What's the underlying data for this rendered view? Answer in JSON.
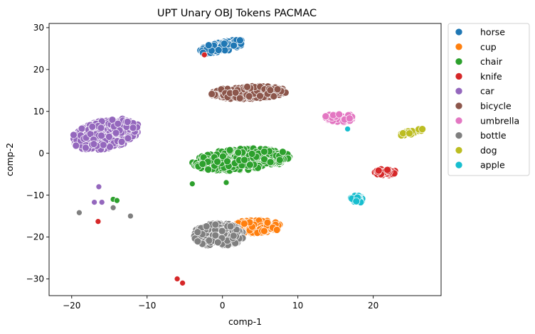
{
  "chart_data": {
    "type": "scatter",
    "title": "UPT Unary OBJ Tokens PACMAC",
    "xlabel": "comp-1",
    "ylabel": "comp-2",
    "xlim": [
      -23,
      29
    ],
    "ylim": [
      -34,
      31
    ],
    "xticks": [
      -20,
      -10,
      0,
      10,
      20
    ],
    "yticks": [
      -30,
      -20,
      -10,
      0,
      10,
      20,
      30
    ],
    "grid": false,
    "legend_position": "outside right",
    "series": [
      {
        "name": "horse",
        "color": "#1f77b4",
        "clusters": [
          {
            "cx": 0,
            "cy": 25.5,
            "rx": 3,
            "ry": 1.2,
            "tilt": 0.35,
            "n": 90
          }
        ]
      },
      {
        "name": "cup",
        "color": "#ff7f0e",
        "clusters": [
          {
            "cx": 4.5,
            "cy": -17.5,
            "rx": 3.2,
            "ry": 1.6,
            "tilt": 0,
            "n": 130
          }
        ]
      },
      {
        "name": "chair",
        "color": "#2ca02c",
        "clusters": [
          {
            "cx": 2.5,
            "cy": -1.5,
            "rx": 6.5,
            "ry": 2.6,
            "tilt": 0.12,
            "n": 380
          }
        ],
        "points": [
          [
            -14.5,
            -11
          ],
          [
            -14,
            -11.3
          ],
          [
            -4,
            -7.3
          ],
          [
            0.5,
            -7
          ]
        ]
      },
      {
        "name": "knife",
        "color": "#d62728",
        "clusters": [
          {
            "cx": 21.5,
            "cy": -4.5,
            "rx": 1.5,
            "ry": 0.8,
            "tilt": 0,
            "n": 40
          }
        ],
        "points": [
          [
            -16.5,
            -16.3
          ],
          [
            -6,
            -30
          ],
          [
            -5.3,
            -31
          ],
          [
            -2.4,
            23.5
          ]
        ]
      },
      {
        "name": "car",
        "color": "#9467bd",
        "clusters": [
          {
            "cx": -15.5,
            "cy": 4.5,
            "rx": 4.5,
            "ry": 3.5,
            "tilt": 0.3,
            "n": 340
          }
        ],
        "points": [
          [
            -16.4,
            -8
          ],
          [
            -17,
            -11.7
          ],
          [
            -16,
            -11.7
          ]
        ]
      },
      {
        "name": "bicycle",
        "color": "#8c564b",
        "clusters": [
          {
            "cx": 3.5,
            "cy": 14.5,
            "rx": 5,
            "ry": 1.5,
            "tilt": 0.06,
            "n": 230
          }
        ]
      },
      {
        "name": "umbrella",
        "color": "#e377c2",
        "clusters": [
          {
            "cx": 15.5,
            "cy": 8.5,
            "rx": 1.9,
            "ry": 1.2,
            "tilt": 0,
            "n": 70
          }
        ]
      },
      {
        "name": "bottle",
        "color": "#7f7f7f",
        "clusters": [
          {
            "cx": -0.5,
            "cy": -19.5,
            "rx": 3.4,
            "ry": 2.8,
            "tilt": 0,
            "n": 210
          }
        ],
        "points": [
          [
            -19,
            -14.2
          ],
          [
            -14.5,
            -13
          ],
          [
            -12.2,
            -15
          ]
        ]
      },
      {
        "name": "dog",
        "color": "#bcbd22",
        "clusters": [
          {
            "cx": 25,
            "cy": 5,
            "rx": 1.6,
            "ry": 0.5,
            "tilt": 0.45,
            "n": 20
          }
        ]
      },
      {
        "name": "apple",
        "color": "#17becf",
        "clusters": [
          {
            "cx": 17.8,
            "cy": -11,
            "rx": 0.8,
            "ry": 0.9,
            "tilt": 0,
            "n": 30
          }
        ],
        "points": [
          [
            16.6,
            5.8
          ]
        ]
      }
    ]
  }
}
